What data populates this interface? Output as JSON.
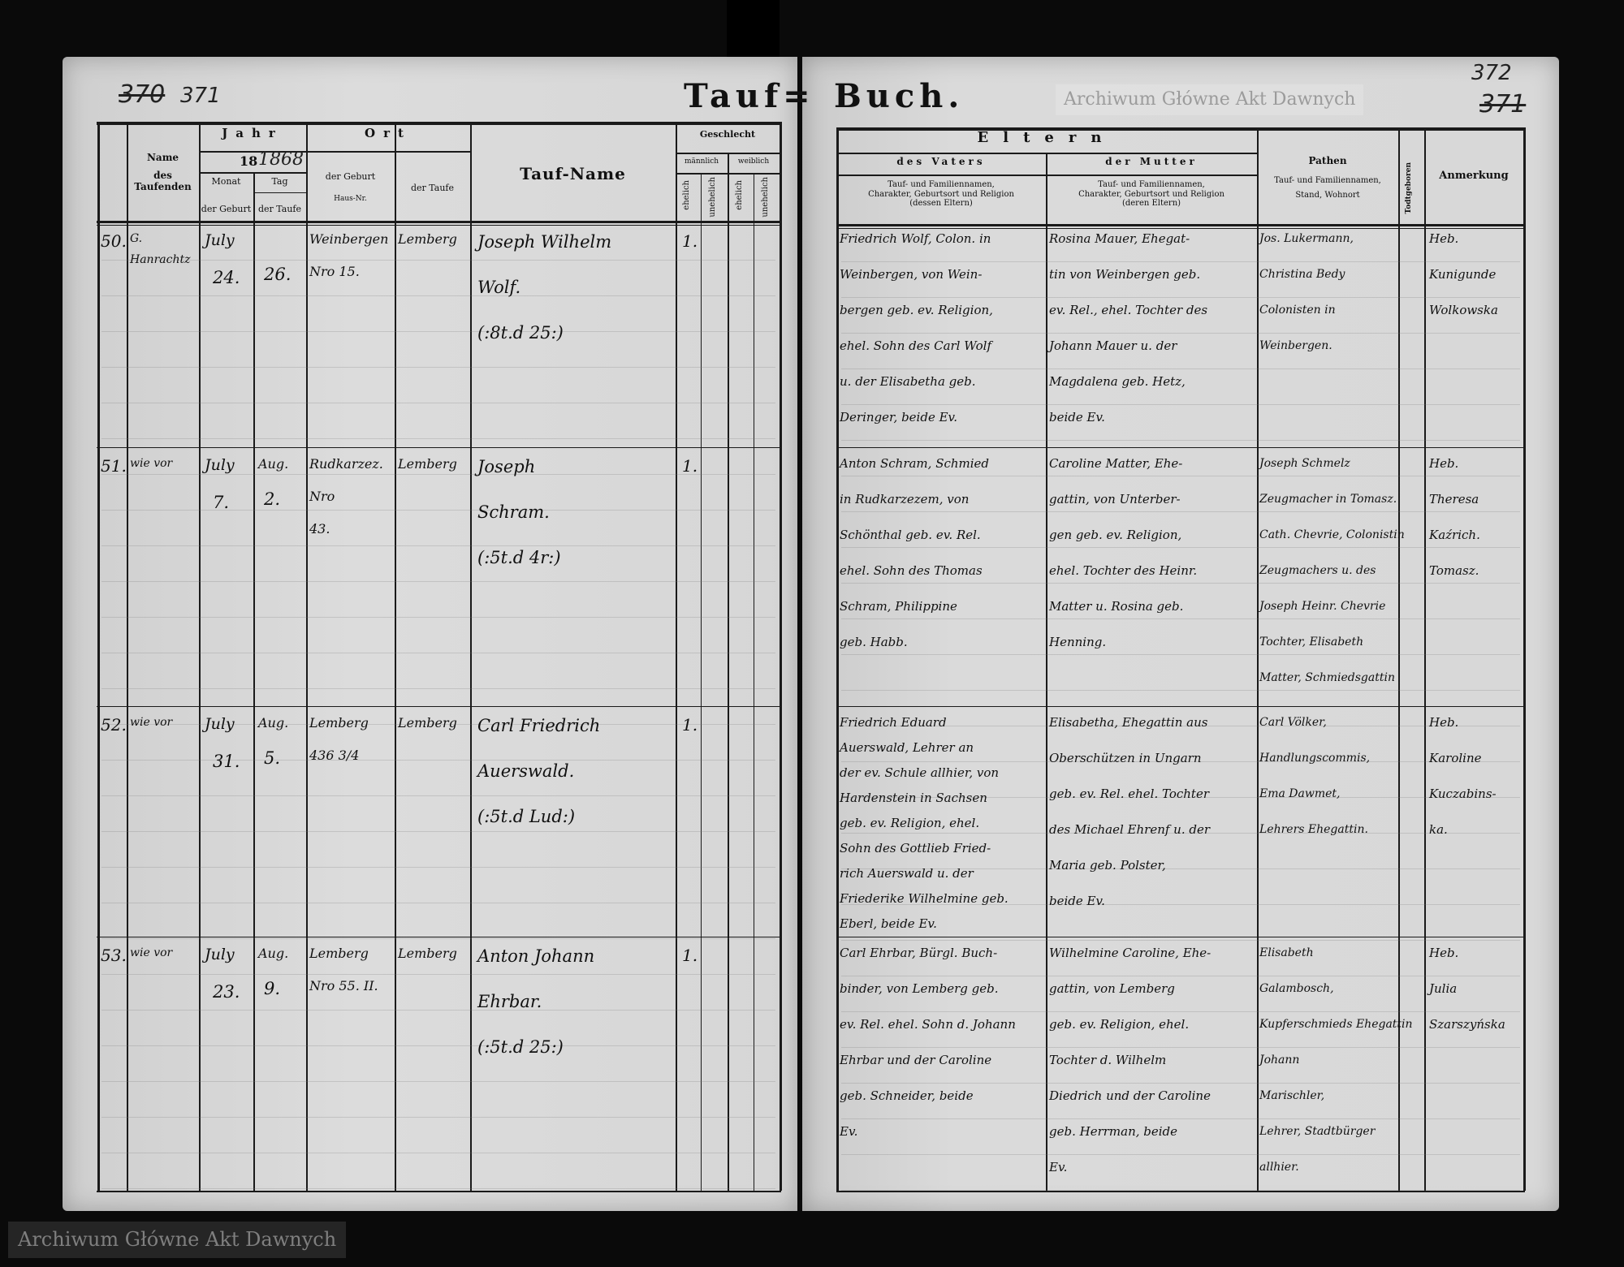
{
  "page_numbers": {
    "left_struck": "370",
    "left": "371",
    "right": "372",
    "right_struck": "371"
  },
  "title": {
    "left": "Tauf=",
    "right": "Buch."
  },
  "left_header": {
    "name_line1": "Name",
    "name_line2": "des Taufenden",
    "jahr": "Jahr",
    "century": "18",
    "year_written": "1868",
    "monat": "Monat",
    "tag": "Tag",
    "der_geburt": "der Geburt",
    "der_taufe": "der Taufe",
    "ort": "Ort",
    "ort_geburt": "der Geburt",
    "haus_nr": "Haus-Nr.",
    "ort_taufe": "der Taufe",
    "taufname": "Tauf-Name",
    "geschlecht": "Geschlecht",
    "maennlich": "männlich",
    "weiblich": "weiblich",
    "ehelich": "ehelich",
    "unehelich": "unehelich"
  },
  "right_header": {
    "eltern": "Eltern",
    "des_vaters": "des Vaters",
    "der_mutter": "der Mutter",
    "vater_desc": [
      "Tauf- und Familiennamen,",
      "Charakter, Geburtsort und Religion",
      "(dessen Eltern)"
    ],
    "mutter_desc": [
      "Tauf- und Familiennamen,",
      "Charakter, Geburtsort und Religion",
      "(deren Eltern)"
    ],
    "pathen": "Pathen",
    "pathen_desc": [
      "Tauf- und Familiennamen,",
      "Stand, Wohnort"
    ],
    "todtgeboren": "Todtgeboren",
    "anmerkung": "Anmerkung"
  },
  "entries": [
    {
      "no": "50.",
      "name": [
        "G.",
        "Hanrachtz"
      ],
      "birth_month": "July",
      "birth_day": "24.",
      "bapt_day": "26.",
      "birth_place": [
        "Weinbergen",
        "Nro 15."
      ],
      "bapt_place": [
        "Lemberg"
      ],
      "bapt_name": [
        "Joseph Wilhelm",
        "Wolf.",
        "(:8t.d 25:)"
      ],
      "male_legit": "1.",
      "father": [
        "Friedrich Wolf, Colon. in",
        "Weinbergen, von Wein-",
        "bergen geb. ev. Religion,",
        "ehel. Sohn des Carl Wolf",
        "u. der Elisabetha geb.",
        "Deringer, beide Ev."
      ],
      "mother": [
        "Rosina Mauer, Ehegat-",
        "tin von Weinbergen geb.",
        "ev. Rel., ehel. Tochter des",
        "Johann Mauer u. der",
        "Magdalena geb. Hetz,",
        "beide Ev."
      ],
      "godparents": [
        "Jos. Lukermann,",
        "Christina Bedy",
        "Colonisten in",
        "Weinbergen."
      ],
      "remark": [
        "Heb.",
        "Kunigunde",
        "Wolkowska"
      ]
    },
    {
      "no": "51.",
      "name": [
        "wie vor"
      ],
      "birth_month": "July",
      "birth_day": "7.",
      "bapt_day": "2.",
      "bapt_month": "Aug.",
      "birth_place": [
        "Rudkarzez.",
        "Nro",
        "43."
      ],
      "bapt_place": [
        "Lemberg"
      ],
      "bapt_name": [
        "Joseph",
        "Schram.",
        "(:5t.d 4r:)"
      ],
      "male_legit": "1.",
      "father": [
        "Anton Schram, Schmied",
        "in Rudkarzezem, von",
        "Schönthal geb. ev. Rel.",
        "ehel. Sohn des Thomas",
        "Schram, Philippine",
        "geb. Habb."
      ],
      "mother": [
        "Caroline Matter, Ehe-",
        "gattin, von Unterber-",
        "gen geb. ev. Religion,",
        "ehel. Tochter des Heinr.",
        "Matter u. Rosina geb.",
        "Henning."
      ],
      "godparents": [
        "Joseph Schmelz",
        "Zeugmacher in Tomasz.",
        "Cath. Chevrie, Colonistin",
        "Zeugmachers u. des",
        "Joseph Heinr. Chevrie",
        "Tochter, Elisabeth",
        "Matter, Schmiedsgattin"
      ],
      "remark": [
        "Heb.",
        "Theresa",
        "Kaźrich.",
        "Tomasz."
      ]
    },
    {
      "no": "52.",
      "name": [
        "wie vor"
      ],
      "birth_month": "July",
      "birth_day": "31.",
      "bapt_day": "5.",
      "bapt_month": "Aug.",
      "birth_place": [
        "Lemberg",
        "436 3/4"
      ],
      "bapt_place": [
        "Lemberg"
      ],
      "bapt_name": [
        "Carl Friedrich",
        "Auerswald.",
        "(:5t.d Lud:)"
      ],
      "male_legit": "1.",
      "father": [
        "Friedrich Eduard",
        "Auerswald, Lehrer an",
        "der ev. Schule allhier, von",
        "Hardenstein in Sachsen",
        "geb. ev. Religion, ehel.",
        "Sohn des Gottlieb Fried-",
        "rich Auerswald u. der",
        "Friederike Wilhelmine geb.",
        "Eberl, beide Ev."
      ],
      "mother": [
        "Elisabetha, Ehegattin aus",
        "Oberschützen in Ungarn",
        "geb. ev. Rel. ehel. Tochter",
        "des Michael Ehrenf u. der",
        "Maria geb. Polster,",
        "beide Ev."
      ],
      "godparents": [
        "Carl Völker,",
        "Handlungscommis,",
        "Ema Dawmet,",
        "Lehrers Ehegattin."
      ],
      "remark": [
        "Heb.",
        "Karoline",
        "Kuczabins-",
        "ka."
      ]
    },
    {
      "no": "53.",
      "name": [
        "wie vor"
      ],
      "birth_month": "July",
      "birth_day": "23.",
      "bapt_day": "9.",
      "bapt_month": "Aug.",
      "birth_place": [
        "Lemberg",
        "Nro 55. II."
      ],
      "bapt_place": [
        "Lemberg"
      ],
      "bapt_name": [
        "Anton Johann",
        "Ehrbar.",
        "(:5t.d 25:)"
      ],
      "male_legit": "1.",
      "father": [
        "Carl Ehrbar, Bürgl. Buch-",
        "binder, von Lemberg geb.",
        "ev. Rel. ehel. Sohn d. Johann",
        "Ehrbar und der Caroline",
        "geb. Schneider, beide",
        "Ev."
      ],
      "mother": [
        "Wilhelmine Caroline, Ehe-",
        "gattin, von Lemberg",
        "geb. ev. Religion, ehel.",
        "Tochter d. Wilhelm",
        "Diedrich und der Caroline",
        "geb. Herrman, beide",
        "Ev."
      ],
      "godparents": [
        "Elisabeth",
        "Galambosch,",
        "Kupferschmieds Ehegattin",
        "Johann",
        "Marischler,",
        "Lehrer, Stadtbürger",
        "allhier."
      ],
      "remark": [
        "Heb.",
        "Julia",
        "Szarszyńska"
      ]
    }
  ],
  "watermark": "Archiwum Główne Akt Dawnych"
}
